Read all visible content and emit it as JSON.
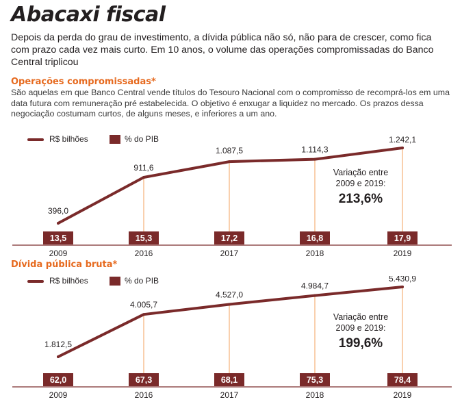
{
  "title": "Abacaxi fiscal",
  "subtitle": "Depois da perda do grau de investimento, a dívida pública não só, não para de crescer, como fica com prazo cada vez mais curto. Em 10 anos, o volume das operações compromissadas do Banco Central triplicou",
  "colors": {
    "series": "#7a2a2a",
    "accent": "#e66a1f",
    "guide": "#f3a25c"
  },
  "chart_data": [
    {
      "type": "line",
      "section_title": "Operações compromissadas",
      "section_star": "*",
      "description": "São aquelas em que Banco Central vende títulos do Tesouro Nacional com o compromisso de recomprá-los em uma data futura com remuneração pré estabelecida. O objetivo é enxugar a liquidez no mercado. Os prazos dessa negociação costumam curtos, de alguns meses, e inferiores a um ano.",
      "legend": [
        "R$ bilhões",
        "% do PIB"
      ],
      "categories": [
        "2009",
        "2016",
        "2017",
        "2018",
        "2019"
      ],
      "series": [
        {
          "name": "R$ bilhões",
          "values": [
            396.0,
            911.6,
            1087.5,
            1114.3,
            1242.1
          ],
          "labels": [
            "396,0",
            "911,6",
            "1.087,5",
            "1.114,3",
            "1.242,1"
          ]
        },
        {
          "name": "% do PIB",
          "values": [
            13.5,
            15.3,
            17.2,
            16.8,
            17.9
          ],
          "labels": [
            "13,5",
            "15,3",
            "17,2",
            "16,8",
            "17,9"
          ]
        }
      ],
      "annotation": {
        "text_line1": "Variação entre",
        "text_line2": "2009 e 2019:",
        "value": "213,6%"
      }
    },
    {
      "type": "line",
      "section_title": "Dívida pública bruta",
      "section_star": "*",
      "legend": [
        "R$ bilhões",
        "% do PIB"
      ],
      "categories": [
        "2009",
        "2016",
        "2017",
        "2018",
        "2019"
      ],
      "series": [
        {
          "name": "R$ bilhões",
          "values": [
            1812.5,
            4005.7,
            4527.0,
            4984.7,
            5430.9
          ],
          "labels": [
            "1.812,5",
            "4.005,7",
            "4.527,0",
            "4.984,7",
            "5.430,9"
          ]
        },
        {
          "name": "% do PIB",
          "values": [
            62.0,
            67.3,
            68.1,
            75.3,
            78.4
          ],
          "labels": [
            "62,0",
            "67,3",
            "68,1",
            "75,3",
            "78,4"
          ]
        }
      ],
      "annotation": {
        "text_line1": "Variação entre",
        "text_line2": "2009 e 2019:",
        "value": "199,6%"
      }
    }
  ]
}
